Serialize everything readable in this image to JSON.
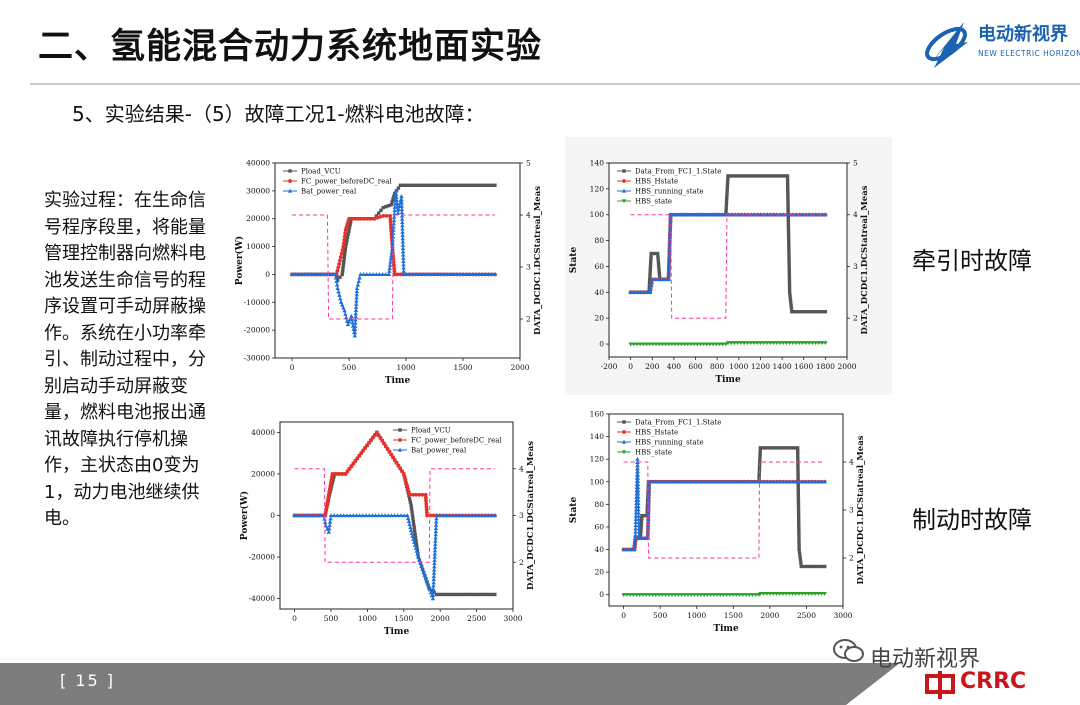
{
  "header": {
    "title": "二、氢能混合动力系统地面实验",
    "logo_cn": "电动新视界",
    "logo_en": "NEW ELECTRIC HORIZON"
  },
  "subtitle": "5、实验结果-（5）故障工况1-燃料电池故障：",
  "description": "实验过程：在生命信号程序段里，将能量管理控制器向燃料电池发送生命信号的程序设置可手动屏蔽操作。系统在小功率牵引、制动过程中，分别启动手动屏蔽变量，燃料电池报出通讯故障执行停机操作，主状态由0变为1，动力电池继续供电。",
  "labels": {
    "traction": "牵引时故障",
    "braking": "制动时故障"
  },
  "footer": {
    "page": "[ 15 ]",
    "watermark": "电动新视界",
    "brand": "CRRC"
  },
  "colors": {
    "pload": "#555555",
    "fc": "#e8302a",
    "bat": "#1e6fd9",
    "hbs_state": "#2ca02c",
    "dcdc": "#ff3399",
    "crrc_red": "#c8161d"
  },
  "chart_data": [
    {
      "type": "line",
      "xlabel": "Time",
      "ylabel": "Power(W)",
      "y2label": "DATA_DCDC1.DCStatreal_Meas",
      "xlim": [
        -150,
        2000
      ],
      "xticks": [
        0,
        500,
        1000,
        1500,
        2000
      ],
      "ylim": [
        -30000,
        40000
      ],
      "yticks": [
        -30000,
        -20000,
        -10000,
        0,
        10000,
        20000,
        30000,
        40000
      ],
      "y2lim": [
        1.25,
        5
      ],
      "y2ticks": [
        2,
        3,
        4,
        5
      ],
      "legend": "top-left",
      "series": [
        {
          "name": "Pload_VCU",
          "axis": "left",
          "color": "#555555",
          "marker": "square",
          "points": [
            [
              0,
              0
            ],
            [
              380,
              0
            ],
            [
              400,
              -2000
            ],
            [
              440,
              0
            ],
            [
              470,
              10000
            ],
            [
              520,
              20000
            ],
            [
              600,
              20000
            ],
            [
              720,
              20000
            ],
            [
              800,
              24000
            ],
            [
              870,
              25000
            ],
            [
              900,
              29000
            ],
            [
              950,
              32000
            ],
            [
              1000,
              32000
            ],
            [
              1300,
              32000
            ],
            [
              1780,
              32000
            ]
          ]
        },
        {
          "name": "FC_power_beforeDC_real",
          "axis": "left",
          "color": "#e8302a",
          "marker": "circle",
          "points": [
            [
              0,
              0
            ],
            [
              390,
              0
            ],
            [
              420,
              5000
            ],
            [
              450,
              10000
            ],
            [
              470,
              16000
            ],
            [
              500,
              20000
            ],
            [
              600,
              20000
            ],
            [
              720,
              20000
            ],
            [
              800,
              21000
            ],
            [
              860,
              21000
            ],
            [
              880,
              10000
            ],
            [
              900,
              0
            ],
            [
              1000,
              0
            ],
            [
              1780,
              0
            ]
          ]
        },
        {
          "name": "Bat_power_real",
          "axis": "left",
          "color": "#1e6fd9",
          "marker": "triangle",
          "points": [
            [
              0,
              0
            ],
            [
              380,
              0
            ],
            [
              400,
              -5000
            ],
            [
              430,
              -10000
            ],
            [
              460,
              -13000
            ],
            [
              490,
              -18000
            ],
            [
              520,
              -15000
            ],
            [
              550,
              -22000
            ],
            [
              570,
              -5000
            ],
            [
              600,
              0
            ],
            [
              850,
              0
            ],
            [
              880,
              10000
            ],
            [
              910,
              30000
            ],
            [
              930,
              22000
            ],
            [
              960,
              28000
            ],
            [
              980,
              0
            ],
            [
              1780,
              0
            ]
          ]
        },
        {
          "name": "DATA_DCDC1.DCStatreal_Meas",
          "axis": "right",
          "color": "#ff3399",
          "dashed": true,
          "points": [
            [
              0,
              4
            ],
            [
              310,
              4
            ],
            [
              320,
              2
            ],
            [
              880,
              2
            ],
            [
              890,
              4
            ],
            [
              1780,
              4
            ]
          ]
        }
      ]
    },
    {
      "type": "line",
      "xlabel": "Time",
      "ylabel": "State",
      "y2label": "DATA_DCDC1.DCStatreal_Meas",
      "xlim": [
        -200,
        2000
      ],
      "xticks": [
        -200,
        0,
        200,
        400,
        600,
        800,
        1000,
        1200,
        1400,
        1600,
        1800,
        2000
      ],
      "ylim": [
        -10,
        140
      ],
      "yticks": [
        0,
        20,
        40,
        60,
        80,
        100,
        120,
        140
      ],
      "y2lim": [
        1.25,
        5
      ],
      "y2ticks": [
        2,
        3,
        4,
        5
      ],
      "legend": "top-left",
      "series": [
        {
          "name": "Data_From_FC1_1.State",
          "axis": "left",
          "color": "#555555",
          "marker": "square",
          "points": [
            [
              0,
              40
            ],
            [
              170,
              40
            ],
            [
              190,
              70
            ],
            [
              250,
              70
            ],
            [
              270,
              50
            ],
            [
              350,
              50
            ],
            [
              370,
              100
            ],
            [
              880,
              100
            ],
            [
              900,
              130
            ],
            [
              1450,
              130
            ],
            [
              1470,
              40
            ],
            [
              1490,
              25
            ],
            [
              1800,
              25
            ]
          ]
        },
        {
          "name": "HBS_Hstate",
          "axis": "left",
          "color": "#e8302a",
          "marker": "circle",
          "points": [
            [
              0,
              40
            ],
            [
              180,
              40
            ],
            [
              200,
              50
            ],
            [
              350,
              50
            ],
            [
              370,
              100
            ],
            [
              1800,
              100
            ]
          ]
        },
        {
          "name": "HBS_running_state",
          "axis": "left",
          "color": "#1e6fd9",
          "marker": "triangle",
          "points": [
            [
              0,
              40
            ],
            [
              180,
              40
            ],
            [
              200,
              50
            ],
            [
              350,
              50
            ],
            [
              370,
              100
            ],
            [
              1800,
              100
            ]
          ]
        },
        {
          "name": "HBS_state",
          "axis": "left",
          "color": "#2ca02c",
          "marker": "triangle-down",
          "points": [
            [
              0,
              0
            ],
            [
              880,
              0
            ],
            [
              900,
              1
            ],
            [
              1800,
              1
            ]
          ]
        },
        {
          "name": "DATA_DCDC1.DCStatreal_Meas",
          "axis": "right",
          "color": "#ff3399",
          "dashed": true,
          "points": [
            [
              0,
              4
            ],
            [
              370,
              4
            ],
            [
              380,
              2
            ],
            [
              880,
              2
            ],
            [
              890,
              4
            ],
            [
              1800,
              4
            ]
          ]
        }
      ]
    },
    {
      "type": "line",
      "xlabel": "Time",
      "ylabel": "Power(W)",
      "y2label": "DATA_DCDC1.DCStatreal_Meas",
      "xlim": [
        -200,
        3000
      ],
      "xticks": [
        0,
        500,
        1000,
        1500,
        2000,
        2500,
        3000
      ],
      "ylim": [
        -45000,
        45000
      ],
      "yticks": [
        -40000,
        -20000,
        0,
        20000,
        40000
      ],
      "y2lim": [
        1,
        5
      ],
      "y2ticks": [
        2,
        3,
        4
      ],
      "legend": "top-right",
      "series": [
        {
          "name": "Pload_VCU",
          "axis": "left",
          "color": "#555555",
          "marker": "square",
          "points": [
            [
              0,
              0
            ],
            [
              420,
              0
            ],
            [
              480,
              10000
            ],
            [
              550,
              20000
            ],
            [
              700,
              20000
            ],
            [
              1130,
              40000
            ],
            [
              1500,
              20000
            ],
            [
              1600,
              5000
            ],
            [
              1700,
              -20000
            ],
            [
              1850,
              -35000
            ],
            [
              1950,
              -38000
            ],
            [
              2750,
              -38000
            ]
          ]
        },
        {
          "name": "FC_power_beforeDC_real",
          "axis": "left",
          "color": "#e8302a",
          "marker": "circle",
          "points": [
            [
              0,
              0
            ],
            [
              420,
              0
            ],
            [
              470,
              10000
            ],
            [
              520,
              20000
            ],
            [
              700,
              20000
            ],
            [
              1130,
              40000
            ],
            [
              1500,
              20000
            ],
            [
              1580,
              10000
            ],
            [
              1800,
              10000
            ],
            [
              1820,
              0
            ],
            [
              2750,
              0
            ]
          ]
        },
        {
          "name": "Bat_power_real",
          "axis": "left",
          "color": "#1e6fd9",
          "marker": "triangle",
          "points": [
            [
              0,
              0
            ],
            [
              400,
              0
            ],
            [
              430,
              -5000
            ],
            [
              470,
              -8000
            ],
            [
              500,
              0
            ],
            [
              1550,
              0
            ],
            [
              1620,
              -10000
            ],
            [
              1700,
              -20000
            ],
            [
              1800,
              -30000
            ],
            [
              1900,
              -40000
            ],
            [
              1950,
              0
            ],
            [
              2750,
              0
            ]
          ]
        },
        {
          "name": "DATA_DCDC1.DCStatreal_Meas",
          "axis": "right",
          "color": "#ff3399",
          "dashed": true,
          "points": [
            [
              0,
              4
            ],
            [
              410,
              4
            ],
            [
              420,
              2
            ],
            [
              1850,
              2
            ],
            [
              1860,
              4
            ],
            [
              2750,
              4
            ]
          ]
        }
      ]
    },
    {
      "type": "line",
      "xlabel": "Time",
      "ylabel": "State",
      "y2label": "DATA_DCDC1.DCStatreal_Meas",
      "xlim": [
        -200,
        3000
      ],
      "xticks": [
        0,
        500,
        1000,
        1500,
        2000,
        2500,
        3000
      ],
      "ylim": [
        -10,
        160
      ],
      "yticks": [
        0,
        20,
        40,
        60,
        80,
        100,
        120,
        140,
        160
      ],
      "y2lim": [
        1,
        5
      ],
      "y2ticks": [
        2,
        3,
        4
      ],
      "legend": "top-left",
      "series": [
        {
          "name": "Data_From_FC1_1.State",
          "axis": "left",
          "color": "#555555",
          "marker": "square",
          "points": [
            [
              0,
              40
            ],
            [
              140,
              40
            ],
            [
              160,
              50
            ],
            [
              230,
              50
            ],
            [
              250,
              70
            ],
            [
              320,
              70
            ],
            [
              340,
              100
            ],
            [
              1850,
              100
            ],
            [
              1870,
              130
            ],
            [
              2380,
              130
            ],
            [
              2400,
              40
            ],
            [
              2430,
              25
            ],
            [
              2750,
              25
            ]
          ]
        },
        {
          "name": "HBS_Hstate",
          "axis": "left",
          "color": "#e8302a",
          "marker": "circle",
          "points": [
            [
              0,
              40
            ],
            [
              150,
              40
            ],
            [
              170,
              50
            ],
            [
              330,
              50
            ],
            [
              350,
              100
            ],
            [
              2750,
              100
            ]
          ]
        },
        {
          "name": "HBS_running_state",
          "axis": "left",
          "color": "#1e6fd9",
          "marker": "triangle",
          "points": [
            [
              0,
              40
            ],
            [
              140,
              40
            ],
            [
              160,
              50
            ],
            [
              190,
              120
            ],
            [
              210,
              50
            ],
            [
              330,
              50
            ],
            [
              350,
              100
            ],
            [
              2750,
              100
            ]
          ]
        },
        {
          "name": "HBS_state",
          "axis": "left",
          "color": "#2ca02c",
          "marker": "triangle-down",
          "points": [
            [
              0,
              0
            ],
            [
              1850,
              0
            ],
            [
              1870,
              1
            ],
            [
              2750,
              1
            ]
          ]
        },
        {
          "name": "DATA_DCDC1.DCStatreal_Meas",
          "axis": "right",
          "color": "#ff3399",
          "dashed": true,
          "points": [
            [
              0,
              4
            ],
            [
              330,
              4
            ],
            [
              340,
              2
            ],
            [
              1850,
              2
            ],
            [
              1860,
              4
            ],
            [
              2750,
              4
            ]
          ]
        }
      ]
    }
  ]
}
